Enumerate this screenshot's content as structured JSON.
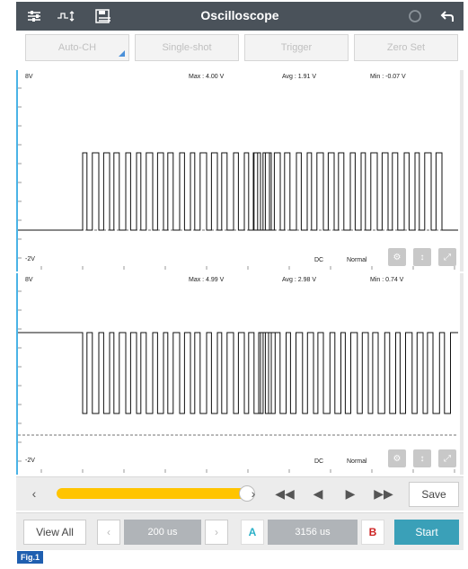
{
  "header": {
    "title": "Oscilloscope",
    "icons": [
      "sliders-icon",
      "signal-icon",
      "save-disk-icon",
      "refresh-icon",
      "back-icon"
    ]
  },
  "toolbar": {
    "auto_ch": "Auto-CH",
    "single_shot": "Single-shot",
    "trigger": "Trigger",
    "zero_set": "Zero Set"
  },
  "channel1": {
    "vmax_label": "8V",
    "vmin_label": "-2V",
    "max": "Max : 4.00 V",
    "avg": "Avg : 1.91 V",
    "min": "Min : -0.07 V",
    "coupling": "DC",
    "mode": "Normal"
  },
  "channel2": {
    "vmax_label": "8V",
    "vmin_label": "-2V",
    "max": "Max : 4.99 V",
    "avg": "Avg : 2.98 V",
    "min": "Min : 0.74 V",
    "coupling": "DC",
    "mode": "Normal"
  },
  "controls": {
    "save": "Save",
    "view_all": "View All",
    "timebase": "200 us",
    "marker_a": "A",
    "cursor_delta": "3156 us",
    "marker_b": "B",
    "start": "Start"
  },
  "caption": "Fig.1",
  "colors": {
    "titlebar": "#4a525a",
    "accent_cyan": "#4ab3e6",
    "slider": "#ffc400",
    "start": "#3aa0b8",
    "marker_b": "#cc2222"
  }
}
